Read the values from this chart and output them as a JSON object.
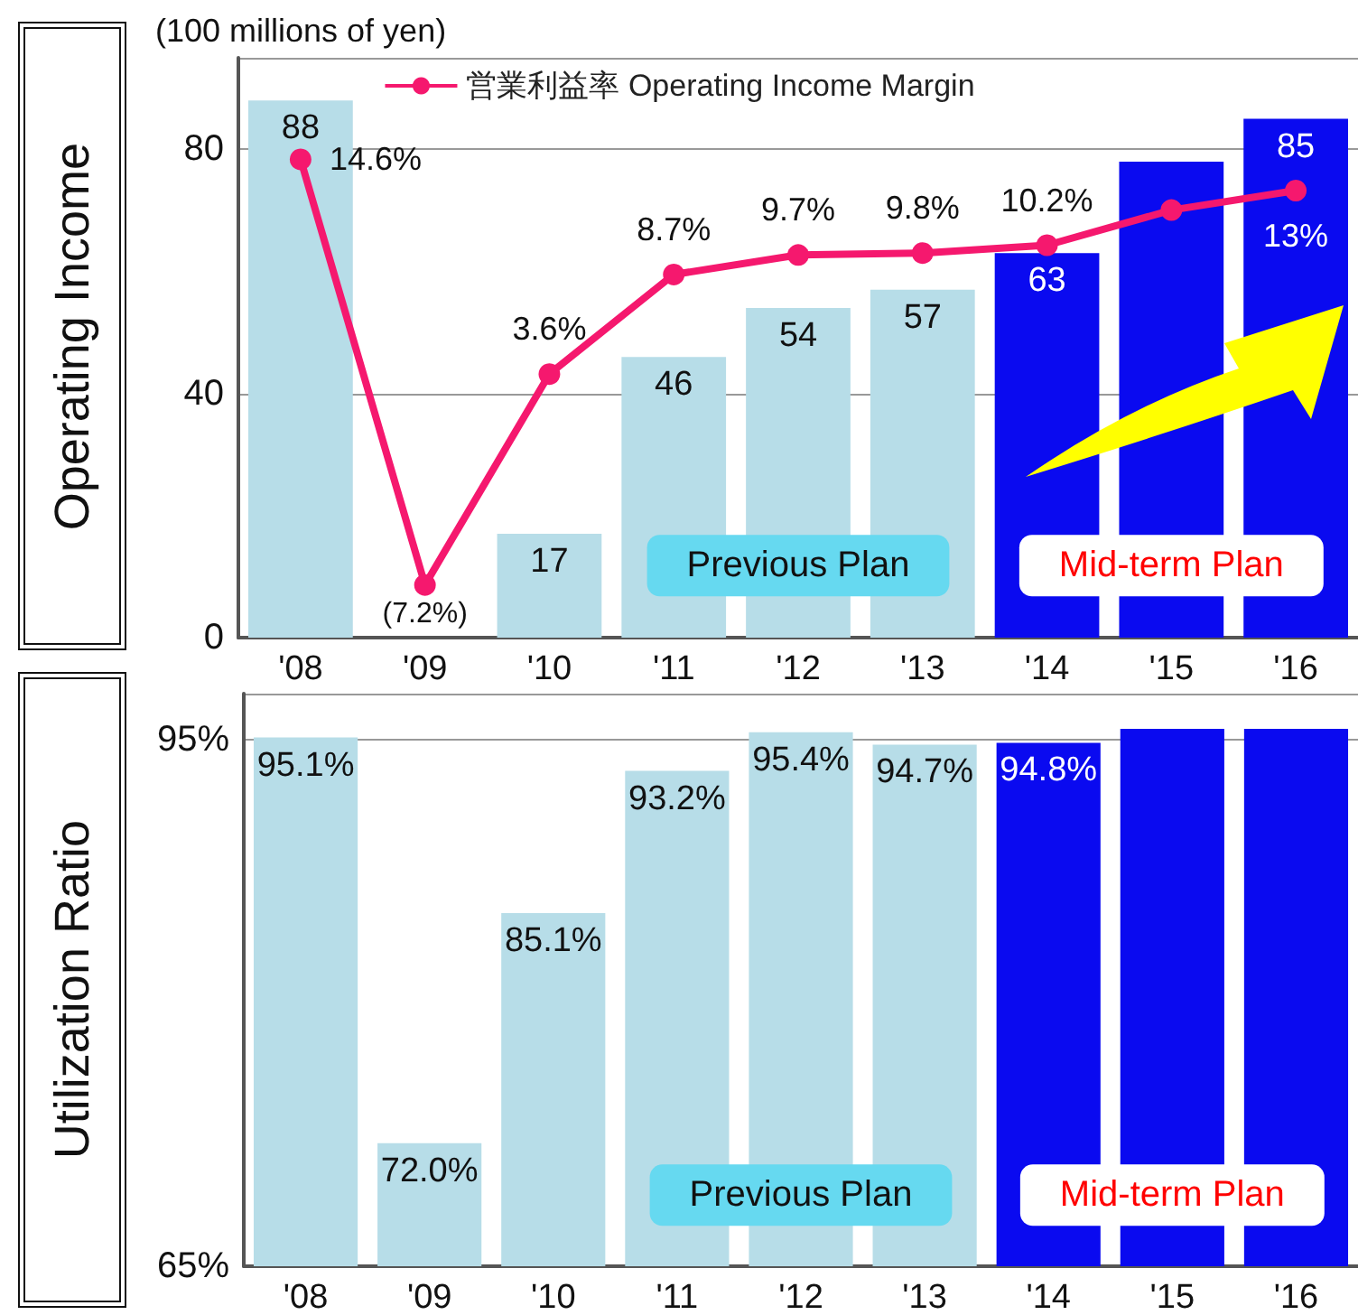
{
  "chart_data": [
    {
      "type": "bar",
      "ylabel": "Operating Income",
      "categories": [
        "'08",
        "'09",
        "'10",
        "'11",
        "'12",
        "'13",
        "'14",
        "'15",
        "'16"
      ],
      "ylim": [
        0,
        95
      ],
      "yticks": [
        0,
        40,
        80
      ],
      "y2lim": [
        -9.9,
        19.8
      ],
      "grid": "y",
      "legend": "top",
      "annotations": [
        "(100 millions of yen)",
        "Previous Plan",
        "Mid-term Plan"
      ],
      "series": [
        {
          "values": [
            88,
            null,
            17,
            46,
            54,
            57,
            63,
            78,
            85
          ],
          "value_labels": [
            "88",
            null,
            "17",
            "46",
            "54",
            "57",
            "63",
            null,
            "85"
          ],
          "colors": [
            "#b7dde8",
            "#b7dde8",
            "#b7dde8",
            "#b7dde8",
            "#b7dde8",
            "#b7dde8",
            "#0a0af0",
            "#0a0af0",
            "#0a0af0"
          ]
        },
        {
          "type": "line",
          "name": "営業利益率 Operating Income Margin",
          "axis": "y2",
          "color": "#f5186e",
          "marker": "circle",
          "values": [
            14.6,
            -7.2,
            3.6,
            8.7,
            9.7,
            9.8,
            10.2,
            12.0,
            13
          ],
          "value_labels": [
            "14.6%",
            "(7.2%)",
            "3.6%",
            "8.7%",
            "9.7%",
            "9.8%",
            "10.2%",
            null,
            "13%"
          ]
        }
      ]
    },
    {
      "type": "bar",
      "ylabel": "Utilization Ratio",
      "categories": [
        "'08",
        "'09",
        "'10",
        "'11",
        "'12",
        "'13",
        "'14",
        "'15",
        "'16"
      ],
      "ylim": [
        65,
        97.6
      ],
      "yticks": [
        {
          "value": 65,
          "label": "65%"
        },
        {
          "value": 95,
          "label": "95%"
        }
      ],
      "grid": "y",
      "annotations": [
        "Previous Plan",
        "Mid-term Plan"
      ],
      "series": [
        {
          "values": [
            95.1,
            72.0,
            85.1,
            93.2,
            95.4,
            94.7,
            94.8,
            95.6,
            95.6
          ],
          "value_labels": [
            "95.1%",
            "72.0%",
            "85.1%",
            "93.2%",
            "95.4%",
            "94.7%",
            "94.8%",
            null,
            null
          ],
          "colors": [
            "#b7dde8",
            "#b7dde8",
            "#b7dde8",
            "#b7dde8",
            "#b7dde8",
            "#b7dde8",
            "#0a0af0",
            "#0a0af0",
            "#0a0af0"
          ]
        }
      ]
    }
  ]
}
